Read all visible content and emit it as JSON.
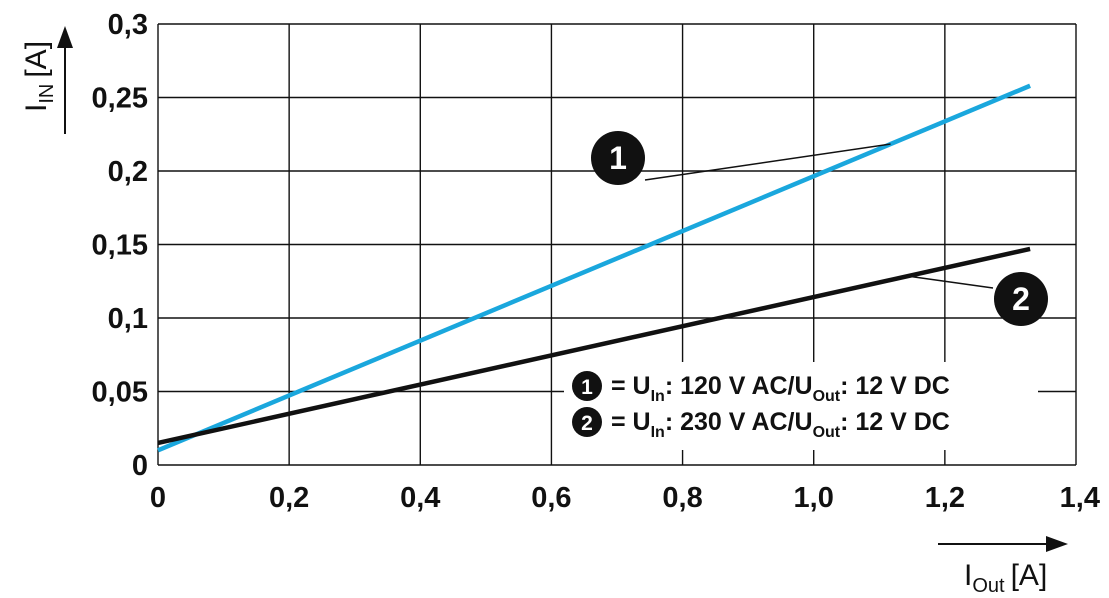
{
  "chart_data": {
    "type": "line",
    "xlabel": {
      "main": "I",
      "sub": "Out",
      "unit": "[A]"
    },
    "ylabel": {
      "main": "I",
      "sub": "IN",
      "unit": "[A]"
    },
    "xlim": [
      0,
      1.4
    ],
    "ylim": [
      0,
      0.3
    ],
    "x_ticks": [
      0,
      0.2,
      0.4,
      0.6,
      0.8,
      1.0,
      1.2,
      1.4
    ],
    "x_tick_labels": [
      "0",
      "0,2",
      "0,4",
      "0,6",
      "0,8",
      "1,0",
      "1,2",
      "1,4"
    ],
    "y_ticks": [
      0,
      0.05,
      0.1,
      0.15,
      0.2,
      0.25,
      0.3
    ],
    "y_tick_labels": [
      "0",
      "0,05",
      "0,1",
      "0,15",
      "0,2",
      "0,25",
      "0,3"
    ],
    "grid": true,
    "series": [
      {
        "marker": "1",
        "color": "#1aa7dd",
        "x": [
          0,
          1.33
        ],
        "y": [
          0.01,
          0.258
        ],
        "legend": {
          "lhs": "= U",
          "lhs_sub": "In",
          "mid": ": 120 V AC/U",
          "mid_sub": "Out",
          "rhs": ": 12 V DC"
        }
      },
      {
        "marker": "2",
        "color": "#111111",
        "x": [
          0,
          1.33
        ],
        "y": [
          0.015,
          0.147
        ],
        "legend": {
          "lhs": "= U",
          "lhs_sub": "In",
          "mid": ": 230 V AC/U",
          "mid_sub": "Out",
          "rhs": ": 12 V DC"
        }
      }
    ],
    "legend_position": "lower-right inside plot"
  }
}
